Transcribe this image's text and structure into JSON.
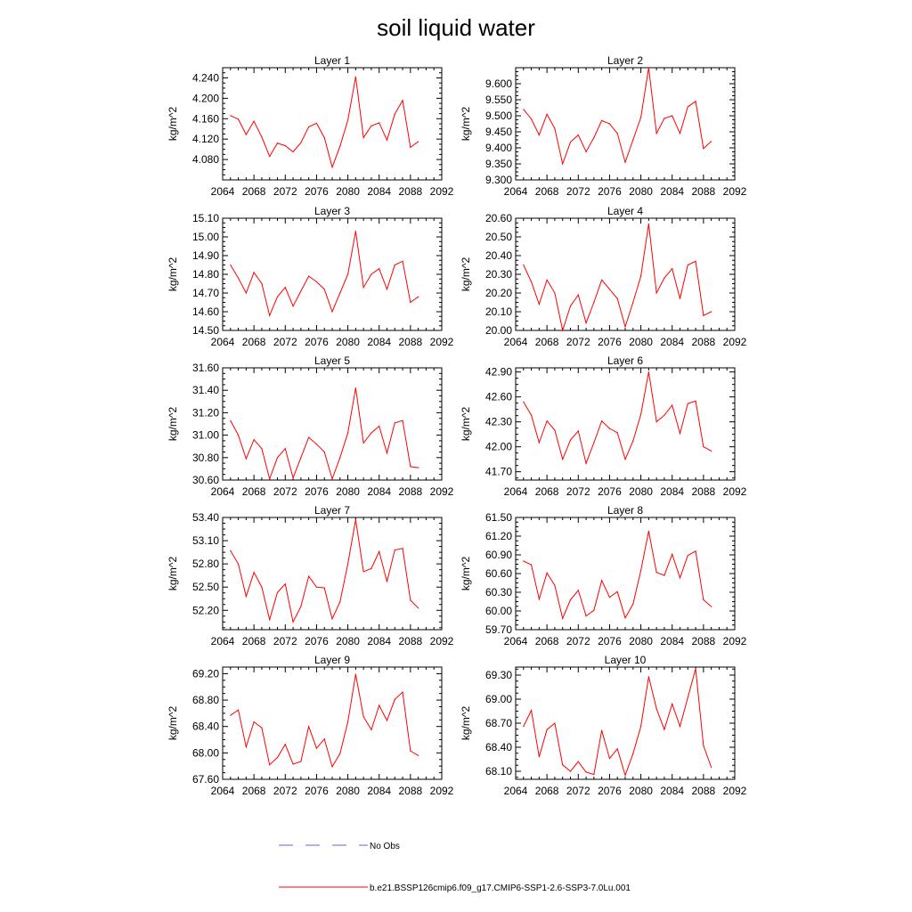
{
  "title": "soil liquid water",
  "colors": {
    "model": "#ff0000",
    "obs": "#6666cc"
  },
  "legend": [
    {
      "label": "No Obs",
      "style": "dashed",
      "color": "#6666cc"
    },
    {
      "label": "b.e21.BSSP126cmip6.f09_g17.CMIP6-SSP1-2.6-SSP3-7.0Lu.001",
      "style": "solid",
      "color": "#ff0000"
    }
  ],
  "chart_data": [
    {
      "type": "line",
      "title": "Layer 1",
      "ylabel": "kg/m^2",
      "xlim": [
        2064,
        2092
      ],
      "ylim": [
        4.04,
        4.26
      ],
      "xticks": [
        "2064",
        "2068",
        "2072",
        "2076",
        "2080",
        "2084",
        "2088",
        "2092"
      ],
      "yticks": [
        "4.080",
        "4.120",
        "4.160",
        "4.200",
        "4.240"
      ],
      "x": [
        2065,
        2066,
        2067,
        2068,
        2069,
        2070,
        2071,
        2072,
        2073,
        2074,
        2075,
        2076,
        2077,
        2078,
        2079,
        2080,
        2081,
        2082,
        2083,
        2084,
        2085,
        2086,
        2087,
        2088,
        2089
      ],
      "series": [
        {
          "values": [
            4.166,
            4.159,
            4.129,
            4.155,
            4.124,
            4.086,
            4.112,
            4.107,
            4.095,
            4.113,
            4.144,
            4.151,
            4.123,
            4.065,
            4.106,
            4.157,
            4.242,
            4.123,
            4.146,
            4.152,
            4.118,
            4.169,
            4.196,
            4.104,
            4.115
          ]
        }
      ]
    },
    {
      "type": "line",
      "title": "Layer 2",
      "ylabel": "kg/m^2",
      "xlim": [
        2064,
        2092
      ],
      "ylim": [
        9.3,
        9.65
      ],
      "xticks": [
        "2064",
        "2068",
        "2072",
        "2076",
        "2080",
        "2084",
        "2088",
        "2092"
      ],
      "yticks": [
        "9.300",
        "9.350",
        "9.400",
        "9.450",
        "9.500",
        "9.550",
        "9.600"
      ],
      "x": [
        2065,
        2066,
        2067,
        2068,
        2069,
        2070,
        2071,
        2072,
        2073,
        2074,
        2075,
        2076,
        2077,
        2078,
        2079,
        2080,
        2081,
        2082,
        2083,
        2084,
        2085,
        2086,
        2087,
        2088,
        2089
      ],
      "series": [
        {
          "values": [
            9.52,
            9.49,
            9.44,
            9.505,
            9.46,
            9.35,
            9.418,
            9.44,
            9.388,
            9.432,
            9.485,
            9.475,
            9.445,
            9.355,
            9.425,
            9.495,
            9.65,
            9.445,
            9.492,
            9.5,
            9.445,
            9.528,
            9.545,
            9.398,
            9.42
          ]
        }
      ]
    },
    {
      "type": "line",
      "title": "Layer 3",
      "ylabel": "kg/m^2",
      "xlim": [
        2064,
        2092
      ],
      "ylim": [
        14.5,
        15.1
      ],
      "xticks": [
        "2064",
        "2068",
        "2072",
        "2076",
        "2080",
        "2084",
        "2088",
        "2092"
      ],
      "yticks": [
        "14.50",
        "14.60",
        "14.70",
        "14.80",
        "14.90",
        "15.00",
        "15.10"
      ],
      "x": [
        2065,
        2066,
        2067,
        2068,
        2069,
        2070,
        2071,
        2072,
        2073,
        2074,
        2075,
        2076,
        2077,
        2078,
        2079,
        2080,
        2081,
        2082,
        2083,
        2084,
        2085,
        2086,
        2087,
        2088,
        2089
      ],
      "series": [
        {
          "values": [
            14.85,
            14.78,
            14.7,
            14.81,
            14.75,
            14.58,
            14.68,
            14.73,
            14.63,
            14.71,
            14.79,
            14.76,
            14.72,
            14.6,
            14.7,
            14.8,
            15.03,
            14.73,
            14.8,
            14.83,
            14.72,
            14.85,
            14.87,
            14.65,
            14.68
          ]
        }
      ]
    },
    {
      "type": "line",
      "title": "Layer 4",
      "ylabel": "kg/m^2",
      "xlim": [
        2064,
        2092
      ],
      "ylim": [
        20.0,
        20.6
      ],
      "xticks": [
        "2064",
        "2068",
        "2072",
        "2076",
        "2080",
        "2084",
        "2088",
        "2092"
      ],
      "yticks": [
        "20.00",
        "20.10",
        "20.20",
        "20.30",
        "20.40",
        "20.50",
        "20.60"
      ],
      "x": [
        2065,
        2066,
        2067,
        2068,
        2069,
        2070,
        2071,
        2072,
        2073,
        2074,
        2075,
        2076,
        2077,
        2078,
        2079,
        2080,
        2081,
        2082,
        2083,
        2084,
        2085,
        2086,
        2087,
        2088,
        2089
      ],
      "series": [
        {
          "values": [
            20.35,
            20.26,
            20.14,
            20.27,
            20.2,
            20.0,
            20.13,
            20.19,
            20.04,
            20.15,
            20.27,
            20.22,
            20.17,
            20.02,
            20.15,
            20.29,
            20.57,
            20.2,
            20.28,
            20.33,
            20.17,
            20.35,
            20.37,
            20.08,
            20.1
          ]
        }
      ]
    },
    {
      "type": "line",
      "title": "Layer 5",
      "ylabel": "kg/m^2",
      "xlim": [
        2064,
        2092
      ],
      "ylim": [
        30.6,
        31.6
      ],
      "xticks": [
        "2064",
        "2068",
        "2072",
        "2076",
        "2080",
        "2084",
        "2088",
        "2092"
      ],
      "yticks": [
        "30.60",
        "30.80",
        "31.00",
        "31.20",
        "31.40",
        "31.60"
      ],
      "x": [
        2065,
        2066,
        2067,
        2068,
        2069,
        2070,
        2071,
        2072,
        2073,
        2074,
        2075,
        2076,
        2077,
        2078,
        2079,
        2080,
        2081,
        2082,
        2083,
        2084,
        2085,
        2086,
        2087,
        2088,
        2089
      ],
      "series": [
        {
          "values": [
            31.13,
            31.0,
            30.79,
            30.96,
            30.88,
            30.61,
            30.8,
            30.88,
            30.62,
            30.8,
            30.98,
            30.92,
            30.85,
            30.61,
            30.8,
            31.02,
            31.42,
            30.93,
            31.02,
            31.08,
            30.84,
            31.11,
            31.13,
            30.72,
            30.71
          ]
        }
      ]
    },
    {
      "type": "line",
      "title": "Layer 6",
      "ylabel": "kg/m^2",
      "xlim": [
        2064,
        2092
      ],
      "ylim": [
        41.6,
        42.95
      ],
      "xticks": [
        "2064",
        "2068",
        "2072",
        "2076",
        "2080",
        "2084",
        "2088",
        "2092"
      ],
      "yticks": [
        "41.70",
        "42.00",
        "42.30",
        "42.60",
        "42.90"
      ],
      "x": [
        2065,
        2066,
        2067,
        2068,
        2069,
        2070,
        2071,
        2072,
        2073,
        2074,
        2075,
        2076,
        2077,
        2078,
        2079,
        2080,
        2081,
        2082,
        2083,
        2084,
        2085,
        2086,
        2087,
        2088,
        2089
      ],
      "series": [
        {
          "values": [
            42.54,
            42.38,
            42.05,
            42.31,
            42.2,
            41.85,
            42.08,
            42.19,
            41.8,
            42.05,
            42.31,
            42.22,
            42.17,
            41.85,
            42.07,
            42.39,
            42.9,
            42.3,
            42.38,
            42.5,
            42.16,
            42.52,
            42.55,
            42.0,
            41.95
          ]
        }
      ]
    },
    {
      "type": "line",
      "title": "Layer 7",
      "ylabel": "kg/m^2",
      "xlim": [
        2064,
        2092
      ],
      "ylim": [
        51.95,
        53.4
      ],
      "xticks": [
        "2064",
        "2068",
        "2072",
        "2076",
        "2080",
        "2084",
        "2088",
        "2092"
      ],
      "yticks": [
        "52.20",
        "52.50",
        "52.80",
        "53.10",
        "53.40"
      ],
      "x": [
        2065,
        2066,
        2067,
        2068,
        2069,
        2070,
        2071,
        2072,
        2073,
        2074,
        2075,
        2076,
        2077,
        2078,
        2079,
        2080,
        2081,
        2082,
        2083,
        2084,
        2085,
        2086,
        2087,
        2088,
        2089
      ],
      "series": [
        {
          "values": [
            52.97,
            52.8,
            52.38,
            52.69,
            52.5,
            52.08,
            52.43,
            52.54,
            52.05,
            52.25,
            52.64,
            52.5,
            52.49,
            52.09,
            52.31,
            52.8,
            53.37,
            52.7,
            52.74,
            52.96,
            52.57,
            52.98,
            53.0,
            52.33,
            52.23
          ]
        }
      ]
    },
    {
      "type": "line",
      "title": "Layer 8",
      "ylabel": "kg/m^2",
      "xlim": [
        2064,
        2092
      ],
      "ylim": [
        59.7,
        61.5
      ],
      "xticks": [
        "2064",
        "2068",
        "2072",
        "2076",
        "2080",
        "2084",
        "2088",
        "2092"
      ],
      "yticks": [
        "59.70",
        "60.00",
        "60.30",
        "60.60",
        "60.90",
        "61.20",
        "61.50"
      ],
      "x": [
        2065,
        2066,
        2067,
        2068,
        2069,
        2070,
        2071,
        2072,
        2073,
        2074,
        2075,
        2076,
        2077,
        2078,
        2079,
        2080,
        2081,
        2082,
        2083,
        2084,
        2085,
        2086,
        2087,
        2088,
        2089
      ],
      "series": [
        {
          "values": [
            60.8,
            60.74,
            60.19,
            60.61,
            60.41,
            59.88,
            60.18,
            60.33,
            59.92,
            60.01,
            60.49,
            60.22,
            60.31,
            59.89,
            60.11,
            60.65,
            61.28,
            60.62,
            60.57,
            60.91,
            60.53,
            60.89,
            60.96,
            60.18,
            60.07
          ]
        }
      ]
    },
    {
      "type": "line",
      "title": "Layer 9",
      "ylabel": "kg/m^2",
      "xlim": [
        2064,
        2092
      ],
      "ylim": [
        67.6,
        69.3
      ],
      "xticks": [
        "2064",
        "2068",
        "2072",
        "2076",
        "2080",
        "2084",
        "2088",
        "2092"
      ],
      "yticks": [
        "67.60",
        "68.00",
        "68.40",
        "68.80",
        "69.20"
      ],
      "x": [
        2065,
        2066,
        2067,
        2068,
        2069,
        2070,
        2071,
        2072,
        2073,
        2074,
        2075,
        2076,
        2077,
        2078,
        2079,
        2080,
        2081,
        2082,
        2083,
        2084,
        2085,
        2086,
        2087,
        2088,
        2089
      ],
      "series": [
        {
          "values": [
            68.57,
            68.65,
            68.09,
            68.47,
            68.38,
            67.82,
            67.93,
            68.13,
            67.83,
            67.87,
            68.4,
            68.07,
            68.21,
            67.79,
            67.99,
            68.47,
            69.19,
            68.55,
            68.35,
            68.72,
            68.49,
            68.81,
            68.92,
            68.03,
            67.96
          ]
        }
      ]
    },
    {
      "type": "line",
      "title": "Layer 10",
      "ylabel": "kg/m^2",
      "xlim": [
        2064,
        2092
      ],
      "ylim": [
        68.0,
        69.4
      ],
      "xticks": [
        "2064",
        "2068",
        "2072",
        "2076",
        "2080",
        "2084",
        "2088",
        "2092"
      ],
      "yticks": [
        "68.10",
        "68.40",
        "68.70",
        "69.00",
        "69.30"
      ],
      "x": [
        2065,
        2066,
        2067,
        2068,
        2069,
        2070,
        2071,
        2072,
        2073,
        2074,
        2075,
        2076,
        2077,
        2078,
        2079,
        2080,
        2081,
        2082,
        2083,
        2084,
        2085,
        2086,
        2087,
        2088,
        2089
      ],
      "series": [
        {
          "values": [
            68.66,
            68.86,
            68.28,
            68.62,
            68.7,
            68.18,
            68.1,
            68.22,
            68.09,
            68.06,
            68.61,
            68.26,
            68.38,
            68.05,
            68.32,
            68.66,
            69.28,
            68.88,
            68.62,
            68.94,
            68.66,
            69.02,
            69.38,
            68.42,
            68.15
          ]
        }
      ]
    }
  ]
}
